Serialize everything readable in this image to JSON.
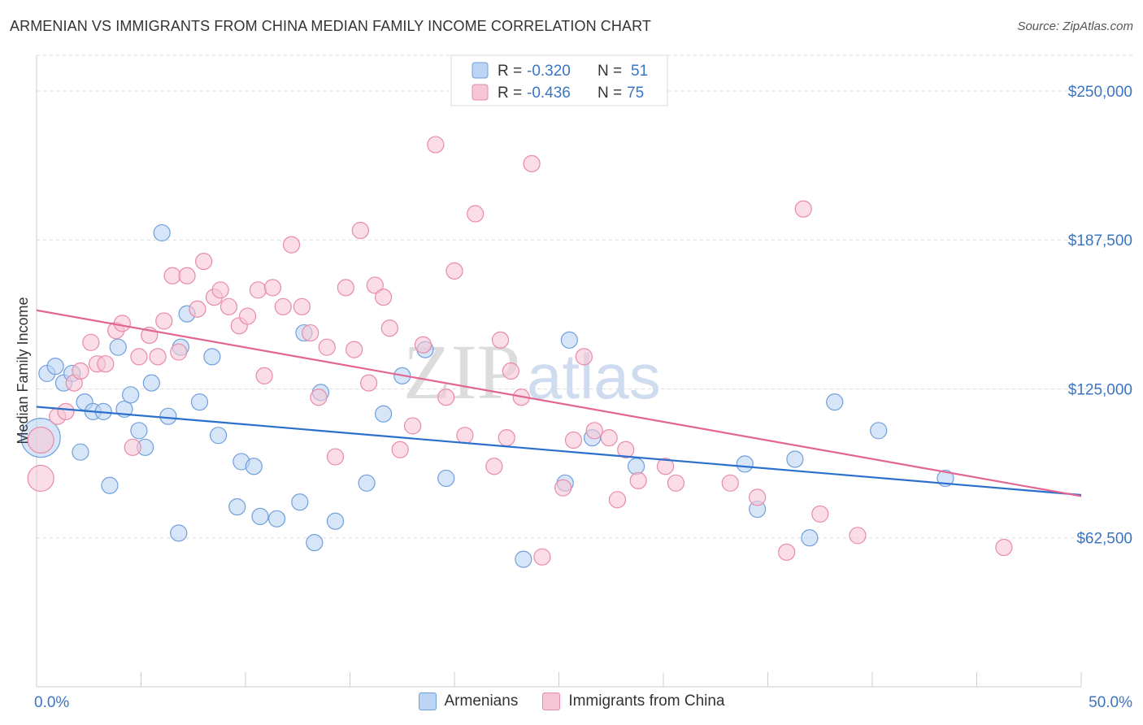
{
  "header": {
    "title": "ARMENIAN VS IMMIGRANTS FROM CHINA MEDIAN FAMILY INCOME CORRELATION CHART",
    "source": "Source: ZipAtlas.com"
  },
  "watermark": {
    "zip": "ZIP",
    "atlas": "atlas"
  },
  "colors": {
    "armenians_fill": "#bcd4f4",
    "armenians_stroke": "#6f9fdc",
    "armenians_line": "#2b6fcd",
    "china_fill": "#f7c6d6",
    "china_stroke": "#e88aa9",
    "china_line": "#e26592",
    "axis_label": "#3a75c4"
  },
  "chart_data": {
    "type": "scatter",
    "title": "ARMENIAN VS IMMIGRANTS FROM CHINA MEDIAN FAMILY INCOME CORRELATION CHART",
    "xlabel": "",
    "ylabel": "Median Family Income",
    "xlim": [
      0,
      50
    ],
    "ylim": [
      0,
      265000
    ],
    "x_tick_labels": [
      "0.0%",
      "50.0%"
    ],
    "y_ticks": [
      62500,
      125000,
      187500,
      250000
    ],
    "y_tick_labels": [
      "$62,500",
      "$125,000",
      "$187,500",
      "$250,000"
    ],
    "grid": true,
    "legend_position": "top-center",
    "series": [
      {
        "name": "Armenians",
        "r_label": "R = ",
        "r_value": "-0.320",
        "n_label": "N = ",
        "n_value": "51",
        "trend": [
          [
            0,
            117500
          ],
          [
            50,
            80500
          ]
        ],
        "points": [
          [
            0.2,
            104500,
            24
          ],
          [
            0.5,
            131500,
            10
          ],
          [
            0.9,
            134500,
            10
          ],
          [
            1.3,
            127500,
            10
          ],
          [
            1.7,
            131500,
            10
          ],
          [
            2.1,
            98500,
            10
          ],
          [
            2.3,
            119500,
            10
          ],
          [
            2.7,
            115500,
            10
          ],
          [
            3.2,
            115500,
            10
          ],
          [
            3.5,
            84500,
            10
          ],
          [
            3.9,
            142500,
            10
          ],
          [
            4.2,
            116500,
            10
          ],
          [
            4.5,
            122500,
            10
          ],
          [
            4.9,
            107500,
            10
          ],
          [
            5.2,
            100500,
            10
          ],
          [
            5.5,
            127500,
            10
          ],
          [
            6.0,
            190500,
            10
          ],
          [
            6.3,
            113500,
            10
          ],
          [
            6.8,
            64500,
            10
          ],
          [
            6.9,
            142500,
            10
          ],
          [
            7.2,
            156500,
            10
          ],
          [
            7.8,
            119500,
            10
          ],
          [
            8.4,
            138500,
            10
          ],
          [
            8.7,
            105500,
            10
          ],
          [
            9.6,
            75500,
            10
          ],
          [
            9.8,
            94500,
            10
          ],
          [
            10.4,
            92500,
            10
          ],
          [
            10.7,
            71500,
            10
          ],
          [
            11.5,
            70500,
            10
          ],
          [
            12.6,
            77500,
            10
          ],
          [
            12.8,
            148500,
            10
          ],
          [
            13.3,
            60500,
            10
          ],
          [
            13.6,
            123500,
            10
          ],
          [
            14.3,
            69500,
            10
          ],
          [
            15.8,
            85500,
            10
          ],
          [
            16.6,
            114500,
            10
          ],
          [
            17.5,
            130500,
            10
          ],
          [
            18.6,
            141500,
            10
          ],
          [
            19.6,
            87500,
            10
          ],
          [
            23.3,
            53500,
            10
          ],
          [
            25.3,
            85500,
            10
          ],
          [
            25.5,
            145500,
            10
          ],
          [
            26.6,
            104500,
            10
          ],
          [
            28.7,
            92500,
            10
          ],
          [
            33.9,
            93500,
            10
          ],
          [
            34.5,
            74500,
            10
          ],
          [
            36.3,
            95500,
            10
          ],
          [
            37.0,
            62500,
            10
          ],
          [
            38.2,
            119500,
            10
          ],
          [
            40.3,
            107500,
            10
          ],
          [
            43.5,
            87500,
            10
          ]
        ]
      },
      {
        "name": "Immigrants from China",
        "r_label": "R = ",
        "r_value": "-0.436",
        "n_label": "N = ",
        "n_value": "75",
        "trend": [
          [
            0,
            158000
          ],
          [
            50,
            80000
          ]
        ],
        "points": [
          [
            0.2,
            103500,
            16
          ],
          [
            0.2,
            87500,
            16
          ],
          [
            1.0,
            113500,
            10
          ],
          [
            1.4,
            115500,
            10
          ],
          [
            1.8,
            127500,
            10
          ],
          [
            2.1,
            132500,
            10
          ],
          [
            2.6,
            144500,
            10
          ],
          [
            2.9,
            135500,
            10
          ],
          [
            3.3,
            135500,
            10
          ],
          [
            3.8,
            149500,
            10
          ],
          [
            4.1,
            152500,
            10
          ],
          [
            4.6,
            100500,
            10
          ],
          [
            4.9,
            138500,
            10
          ],
          [
            5.4,
            147500,
            10
          ],
          [
            5.8,
            138500,
            10
          ],
          [
            6.1,
            153500,
            10
          ],
          [
            6.5,
            172500,
            10
          ],
          [
            6.8,
            140500,
            10
          ],
          [
            7.2,
            172500,
            10
          ],
          [
            7.7,
            158500,
            10
          ],
          [
            8.0,
            178500,
            10
          ],
          [
            8.5,
            163500,
            10
          ],
          [
            8.8,
            166500,
            10
          ],
          [
            9.2,
            159500,
            10
          ],
          [
            9.7,
            151500,
            10
          ],
          [
            10.1,
            155500,
            10
          ],
          [
            10.6,
            166500,
            10
          ],
          [
            10.9,
            130500,
            10
          ],
          [
            11.3,
            167500,
            10
          ],
          [
            11.8,
            159500,
            10
          ],
          [
            12.2,
            185500,
            10
          ],
          [
            12.7,
            159500,
            10
          ],
          [
            13.1,
            148500,
            10
          ],
          [
            13.5,
            121500,
            10
          ],
          [
            13.9,
            142500,
            10
          ],
          [
            14.3,
            96500,
            10
          ],
          [
            14.8,
            167500,
            10
          ],
          [
            15.2,
            141500,
            10
          ],
          [
            15.5,
            191500,
            10
          ],
          [
            15.9,
            127500,
            10
          ],
          [
            16.2,
            168500,
            10
          ],
          [
            16.6,
            163500,
            10
          ],
          [
            16.9,
            150500,
            10
          ],
          [
            17.4,
            99500,
            10
          ],
          [
            18.0,
            109500,
            10
          ],
          [
            18.5,
            143500,
            10
          ],
          [
            19.1,
            227500,
            10
          ],
          [
            19.6,
            121500,
            10
          ],
          [
            20.0,
            174500,
            10
          ],
          [
            20.5,
            105500,
            10
          ],
          [
            21.0,
            198500,
            10
          ],
          [
            21.9,
            92500,
            10
          ],
          [
            22.2,
            145500,
            10
          ],
          [
            22.5,
            104500,
            10
          ],
          [
            22.7,
            132500,
            10
          ],
          [
            23.2,
            121500,
            10
          ],
          [
            23.7,
            219500,
            10
          ],
          [
            24.2,
            54500,
            10
          ],
          [
            25.2,
            83500,
            10
          ],
          [
            25.7,
            103500,
            10
          ],
          [
            26.2,
            138500,
            10
          ],
          [
            26.7,
            107500,
            10
          ],
          [
            27.4,
            104500,
            10
          ],
          [
            27.8,
            78500,
            10
          ],
          [
            28.2,
            99500,
            10
          ],
          [
            28.8,
            86500,
            10
          ],
          [
            30.1,
            92500,
            10
          ],
          [
            30.6,
            85500,
            10
          ],
          [
            33.2,
            85500,
            10
          ],
          [
            34.5,
            79500,
            10
          ],
          [
            35.9,
            56500,
            10
          ],
          [
            36.7,
            200500,
            10
          ],
          [
            37.5,
            72500,
            10
          ],
          [
            39.3,
            63500,
            10
          ],
          [
            46.3,
            58500,
            10
          ]
        ]
      }
    ]
  }
}
